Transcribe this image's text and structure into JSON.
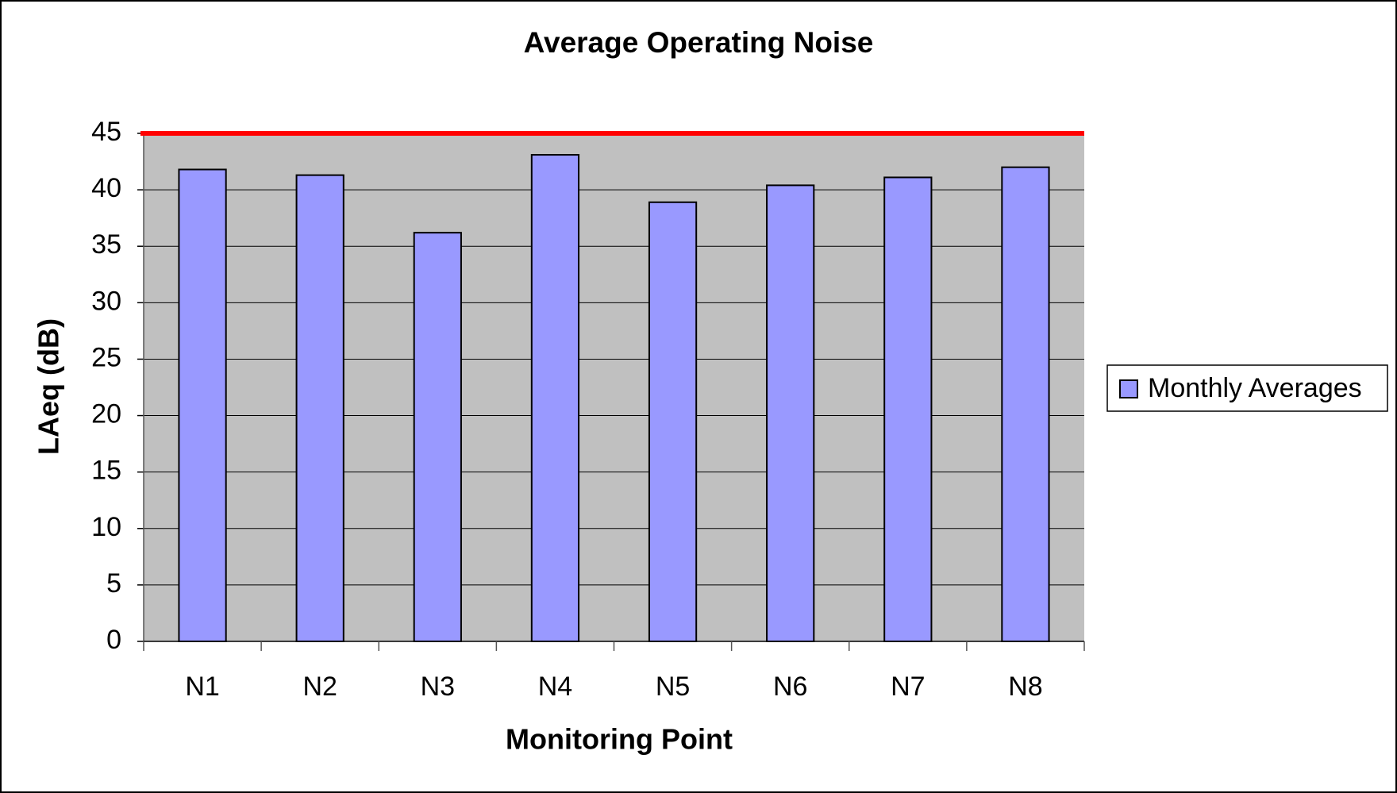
{
  "chart_data": {
    "type": "bar",
    "title": "Average Operating Noise",
    "x_label": "Monitoring Point",
    "y_label": "LAeq (dB)",
    "categories": [
      "N1",
      "N2",
      "N3",
      "N4",
      "N5",
      "N6",
      "N7",
      "N8"
    ],
    "series": [
      {
        "name": "Monthly Averages",
        "color": "#9999ff",
        "values": [
          41.8,
          41.3,
          36.2,
          43.1,
          38.9,
          40.4,
          41.1,
          42.0
        ]
      }
    ],
    "ylim": [
      0,
      45
    ],
    "yticks": [
      0,
      5,
      10,
      15,
      20,
      25,
      30,
      35,
      40,
      45
    ],
    "grid": true,
    "plot_background": "#c0c0c0",
    "legend": "right",
    "reference_line": {
      "value": 45,
      "color": "#ff0000"
    }
  }
}
